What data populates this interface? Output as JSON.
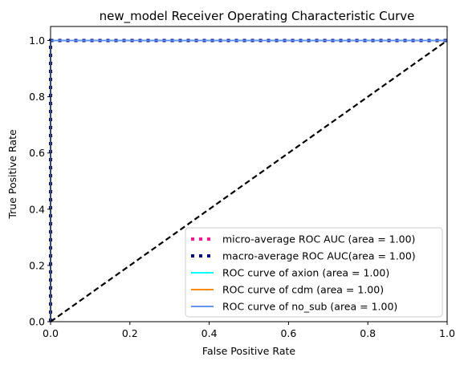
{
  "chart_data": {
    "type": "line",
    "title": "new_model Receiver Operating Characteristic Curve",
    "xlabel": "False Positive Rate",
    "ylabel": "True Positive Rate",
    "xlim": [
      0.0,
      1.0
    ],
    "ylim": [
      0.0,
      1.05
    ],
    "xticks": [
      "0.0",
      "0.2",
      "0.4",
      "0.6",
      "0.8",
      "1.0"
    ],
    "yticks": [
      "0.0",
      "0.2",
      "0.4",
      "0.6",
      "0.8",
      "1.0"
    ],
    "grid": false,
    "legend_position": "lower-right",
    "series": [
      {
        "name": "micro-average ROC AUC (area = 1.00)",
        "color": "#ff1493",
        "style": "dotted-thick",
        "x": [
          0.0,
          0.0,
          1.0
        ],
        "y": [
          0.0,
          1.0,
          1.0
        ]
      },
      {
        "name": "macro-average ROC AUC(area = 1.00)",
        "color": "#000080",
        "style": "dotted-thick",
        "x": [
          0.0,
          0.0,
          1.0
        ],
        "y": [
          0.0,
          1.0,
          1.0
        ]
      },
      {
        "name": "ROC curve of axion (area = 1.00)",
        "color": "#00ffff",
        "style": "solid",
        "x": [
          0.0,
          0.0,
          1.0
        ],
        "y": [
          0.0,
          1.0,
          1.0
        ]
      },
      {
        "name": "ROC curve of cdm (area = 1.00)",
        "color": "#ff8c00",
        "style": "solid",
        "x": [
          0.0,
          0.0,
          1.0
        ],
        "y": [
          0.0,
          1.0,
          1.0
        ]
      },
      {
        "name": "ROC curve of no_sub (area = 1.00)",
        "color": "#6495ed",
        "style": "solid",
        "x": [
          0.0,
          0.0,
          1.0
        ],
        "y": [
          0.0,
          1.0,
          1.0
        ]
      }
    ],
    "reference_line": {
      "color": "#000000",
      "style": "dashed",
      "x": [
        0.0,
        1.0
      ],
      "y": [
        0.0,
        1.0
      ]
    }
  }
}
